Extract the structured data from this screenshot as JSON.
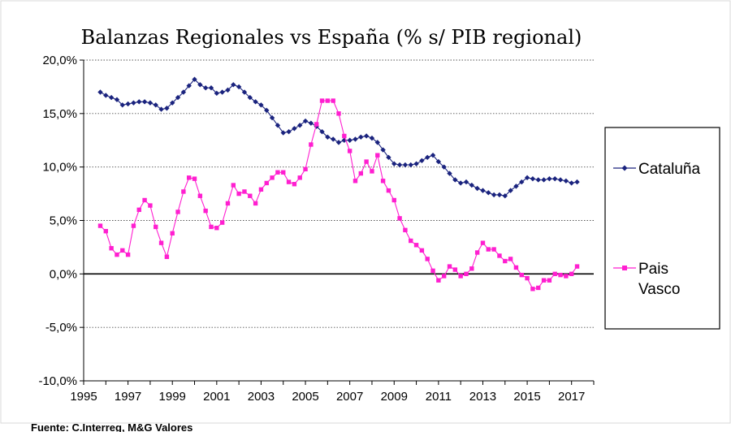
{
  "chart_data": {
    "type": "line",
    "title": "Balanzas Regionales vs España (% s/ PIB regional)",
    "xlabel": "",
    "ylabel": "",
    "xlim": [
      1995,
      2018
    ],
    "ylim": [
      -10,
      20
    ],
    "x_ticks": [
      "1995",
      "1997",
      "1999",
      "2001",
      "2003",
      "2005",
      "2007",
      "2009",
      "2011",
      "2013",
      "2015",
      "2017"
    ],
    "y_ticks": [
      "20,0%",
      "15,0%",
      "10,0%",
      "5,0%",
      "0,0%",
      "-5,0%",
      "-10,0%"
    ],
    "y_tick_values": [
      20,
      15,
      10,
      5,
      0,
      -5,
      -10
    ],
    "grid": "horizontal dashed",
    "legend_position": "right",
    "source": "Fuente: C.Interreg, M&G Valores",
    "series": [
      {
        "name": "Cataluña",
        "color": "#1a237e",
        "marker": "diamond",
        "points": [
          [
            1995.75,
            17.0
          ],
          [
            1996.0,
            16.7
          ],
          [
            1996.25,
            16.5
          ],
          [
            1996.5,
            16.3
          ],
          [
            1996.75,
            15.8
          ],
          [
            1997.0,
            15.9
          ],
          [
            1997.25,
            16.0
          ],
          [
            1997.5,
            16.1
          ],
          [
            1997.75,
            16.1
          ],
          [
            1998.0,
            16.0
          ],
          [
            1998.25,
            15.8
          ],
          [
            1998.5,
            15.4
          ],
          [
            1998.75,
            15.5
          ],
          [
            1999.0,
            16.0
          ],
          [
            1999.25,
            16.5
          ],
          [
            1999.5,
            17.0
          ],
          [
            1999.75,
            17.6
          ],
          [
            2000.0,
            18.2
          ],
          [
            2000.25,
            17.7
          ],
          [
            2000.5,
            17.4
          ],
          [
            2000.75,
            17.4
          ],
          [
            2001.0,
            16.9
          ],
          [
            2001.25,
            17.0
          ],
          [
            2001.5,
            17.2
          ],
          [
            2001.75,
            17.7
          ],
          [
            2002.0,
            17.5
          ],
          [
            2002.25,
            17.0
          ],
          [
            2002.5,
            16.5
          ],
          [
            2002.75,
            16.1
          ],
          [
            2003.0,
            15.8
          ],
          [
            2003.25,
            15.3
          ],
          [
            2003.5,
            14.6
          ],
          [
            2003.75,
            13.9
          ],
          [
            2004.0,
            13.2
          ],
          [
            2004.25,
            13.3
          ],
          [
            2004.5,
            13.6
          ],
          [
            2004.75,
            13.9
          ],
          [
            2005.0,
            14.3
          ],
          [
            2005.25,
            14.1
          ],
          [
            2005.5,
            13.8
          ],
          [
            2005.75,
            13.3
          ],
          [
            2006.0,
            12.8
          ],
          [
            2006.25,
            12.6
          ],
          [
            2006.5,
            12.3
          ],
          [
            2006.75,
            12.5
          ],
          [
            2007.0,
            12.5
          ],
          [
            2007.25,
            12.6
          ],
          [
            2007.5,
            12.8
          ],
          [
            2007.75,
            12.9
          ],
          [
            2008.0,
            12.7
          ],
          [
            2008.25,
            12.3
          ],
          [
            2008.5,
            11.6
          ],
          [
            2008.75,
            10.9
          ],
          [
            2009.0,
            10.3
          ],
          [
            2009.25,
            10.2
          ],
          [
            2009.5,
            10.2
          ],
          [
            2009.75,
            10.2
          ],
          [
            2010.0,
            10.3
          ],
          [
            2010.25,
            10.6
          ],
          [
            2010.5,
            10.9
          ],
          [
            2010.75,
            11.1
          ],
          [
            2011.0,
            10.5
          ],
          [
            2011.25,
            10.0
          ],
          [
            2011.5,
            9.4
          ],
          [
            2011.75,
            8.8
          ],
          [
            2012.0,
            8.5
          ],
          [
            2012.25,
            8.6
          ],
          [
            2012.5,
            8.3
          ],
          [
            2012.75,
            8.0
          ],
          [
            2013.0,
            7.8
          ],
          [
            2013.25,
            7.6
          ],
          [
            2013.5,
            7.4
          ],
          [
            2013.75,
            7.4
          ],
          [
            2014.0,
            7.3
          ],
          [
            2014.25,
            7.8
          ],
          [
            2014.5,
            8.2
          ],
          [
            2014.75,
            8.6
          ],
          [
            2015.0,
            9.0
          ],
          [
            2015.25,
            8.9
          ],
          [
            2015.5,
            8.8
          ],
          [
            2015.75,
            8.8
          ],
          [
            2016.0,
            8.9
          ],
          [
            2016.25,
            8.9
          ],
          [
            2016.5,
            8.8
          ],
          [
            2016.75,
            8.7
          ],
          [
            2017.0,
            8.5
          ],
          [
            2017.25,
            8.6
          ]
        ]
      },
      {
        "name": "Pais Vasco",
        "color": "#ff1fd0",
        "marker": "square",
        "points": [
          [
            1995.75,
            4.5
          ],
          [
            1996.0,
            4.0
          ],
          [
            1996.25,
            2.4
          ],
          [
            1996.5,
            1.8
          ],
          [
            1996.75,
            2.2
          ],
          [
            1997.0,
            1.8
          ],
          [
            1997.25,
            4.5
          ],
          [
            1997.5,
            6.0
          ],
          [
            1997.75,
            6.9
          ],
          [
            1998.0,
            6.4
          ],
          [
            1998.25,
            4.4
          ],
          [
            1998.5,
            2.9
          ],
          [
            1998.75,
            1.6
          ],
          [
            1999.0,
            3.8
          ],
          [
            1999.25,
            5.8
          ],
          [
            1999.5,
            7.7
          ],
          [
            1999.75,
            9.0
          ],
          [
            2000.0,
            8.9
          ],
          [
            2000.25,
            7.3
          ],
          [
            2000.5,
            5.9
          ],
          [
            2000.75,
            4.4
          ],
          [
            2001.0,
            4.3
          ],
          [
            2001.25,
            4.8
          ],
          [
            2001.5,
            6.6
          ],
          [
            2001.75,
            8.3
          ],
          [
            2002.0,
            7.5
          ],
          [
            2002.25,
            7.7
          ],
          [
            2002.5,
            7.3
          ],
          [
            2002.75,
            6.6
          ],
          [
            2003.0,
            7.9
          ],
          [
            2003.25,
            8.5
          ],
          [
            2003.5,
            9.0
          ],
          [
            2003.75,
            9.5
          ],
          [
            2004.0,
            9.5
          ],
          [
            2004.25,
            8.6
          ],
          [
            2004.5,
            8.4
          ],
          [
            2004.75,
            9.0
          ],
          [
            2005.0,
            9.8
          ],
          [
            2005.25,
            12.1
          ],
          [
            2005.5,
            14.0
          ],
          [
            2005.75,
            16.2
          ],
          [
            2006.0,
            16.2
          ],
          [
            2006.25,
            16.2
          ],
          [
            2006.5,
            15.0
          ],
          [
            2006.75,
            12.9
          ],
          [
            2007.0,
            11.5
          ],
          [
            2007.25,
            8.7
          ],
          [
            2007.5,
            9.4
          ],
          [
            2007.75,
            10.5
          ],
          [
            2008.0,
            9.6
          ],
          [
            2008.25,
            11.1
          ],
          [
            2008.5,
            8.7
          ],
          [
            2008.75,
            7.8
          ],
          [
            2009.0,
            6.9
          ],
          [
            2009.25,
            5.2
          ],
          [
            2009.5,
            4.1
          ],
          [
            2009.75,
            3.1
          ],
          [
            2010.0,
            2.7
          ],
          [
            2010.25,
            2.2
          ],
          [
            2010.5,
            1.4
          ],
          [
            2010.75,
            0.3
          ],
          [
            2011.0,
            -0.6
          ],
          [
            2011.25,
            -0.2
          ],
          [
            2011.5,
            0.7
          ],
          [
            2011.75,
            0.4
          ],
          [
            2012.0,
            -0.2
          ],
          [
            2012.25,
            0.0
          ],
          [
            2012.5,
            0.5
          ],
          [
            2012.75,
            2.0
          ],
          [
            2013.0,
            2.9
          ],
          [
            2013.25,
            2.3
          ],
          [
            2013.5,
            2.3
          ],
          [
            2013.75,
            1.7
          ],
          [
            2014.0,
            1.2
          ],
          [
            2014.25,
            1.4
          ],
          [
            2014.5,
            0.6
          ],
          [
            2014.75,
            -0.1
          ],
          [
            2015.0,
            -0.4
          ],
          [
            2015.25,
            -1.4
          ],
          [
            2015.5,
            -1.3
          ],
          [
            2015.75,
            -0.6
          ],
          [
            2016.0,
            -0.6
          ],
          [
            2016.25,
            0.0
          ],
          [
            2016.5,
            -0.1
          ],
          [
            2016.75,
            -0.2
          ],
          [
            2017.0,
            0.0
          ],
          [
            2017.25,
            0.7
          ]
        ]
      }
    ]
  }
}
